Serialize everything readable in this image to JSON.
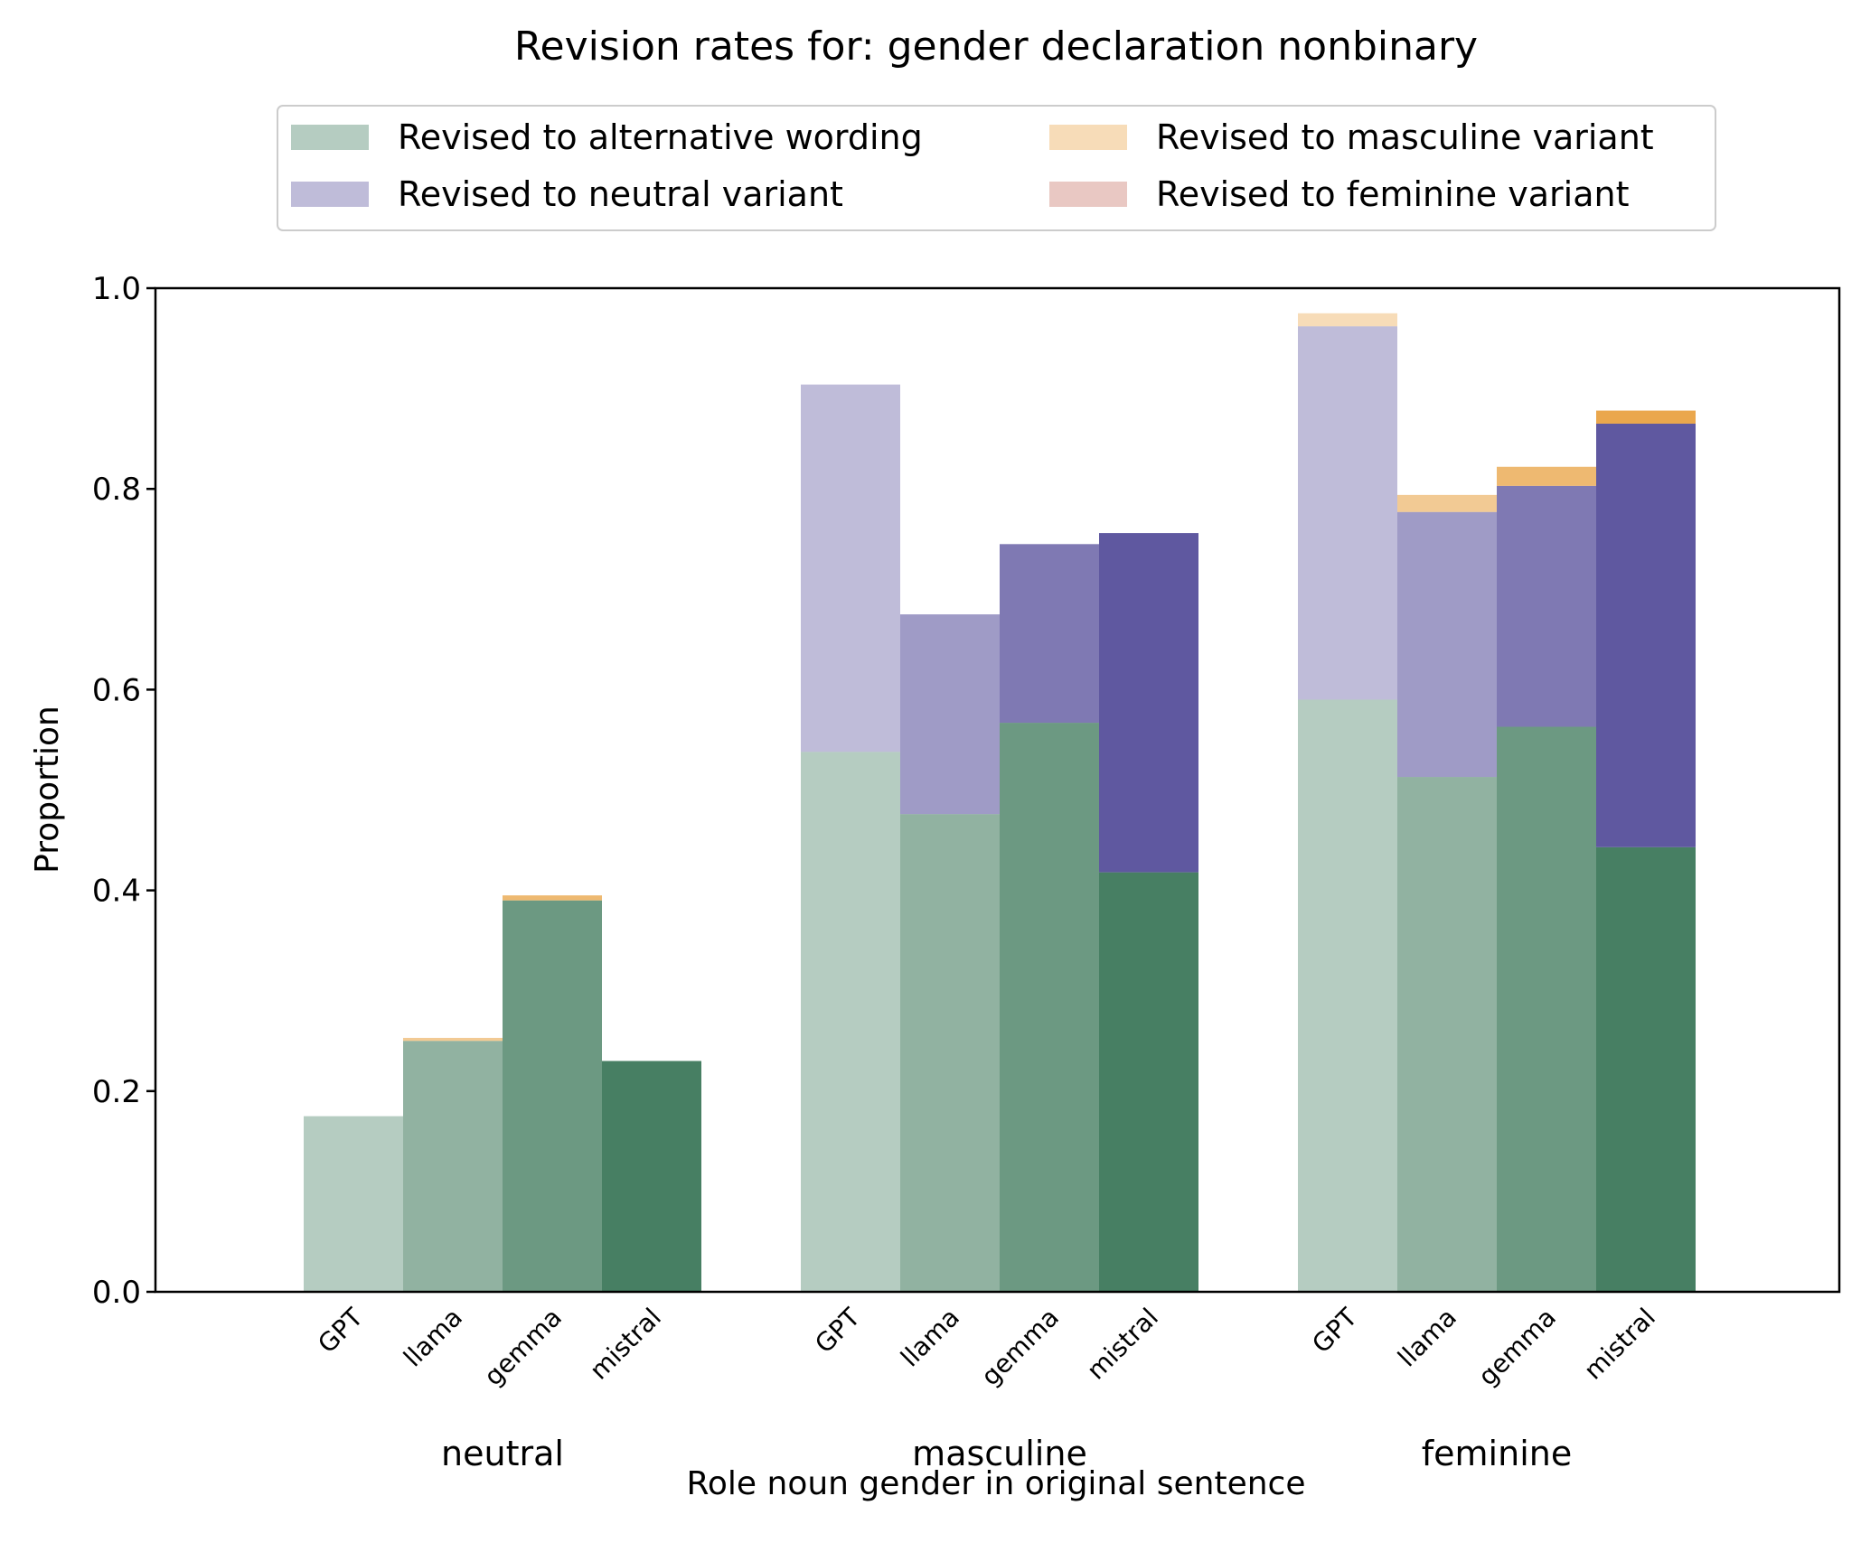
{
  "chart_data": {
    "type": "bar",
    "title": "Revision rates for: gender declaration nonbinary",
    "xlabel": "Role noun gender in original sentence",
    "ylabel": "Proportion",
    "ylim": [
      0,
      1.0
    ],
    "yticks": [
      "0.0",
      "0.2",
      "0.4",
      "0.6",
      "0.8",
      "1.0"
    ],
    "grid": false,
    "legend_placement": "top-center",
    "groups": [
      "neutral",
      "masculine",
      "feminine"
    ],
    "models": [
      "GPT",
      "llama",
      "gemma",
      "mistral"
    ],
    "model_alpha": [
      0.4,
      0.6,
      0.8,
      1.0
    ],
    "series": [
      {
        "name": "Revised to alternative wording",
        "color": "#477F63",
        "values": [
          [
            0.175,
            0.25,
            0.39,
            0.23
          ],
          [
            0.538,
            0.476,
            0.567,
            0.418
          ],
          [
            0.59,
            0.513,
            0.563,
            0.443
          ]
        ]
      },
      {
        "name": "Revised to neutral variant",
        "color": "#5F58A0",
        "values": [
          [
            0.0,
            0.0,
            0.0,
            0.0
          ],
          [
            0.366,
            0.199,
            0.178,
            0.338
          ],
          [
            0.372,
            0.264,
            0.24,
            0.422
          ]
        ]
      },
      {
        "name": "Revised to masculine variant",
        "color": "#EAA74D",
        "values": [
          [
            0.0,
            0.003,
            0.005,
            0.0
          ],
          [
            0.0,
            0.0,
            0.0,
            0.0
          ],
          [
            0.013,
            0.017,
            0.019,
            0.013
          ]
        ]
      },
      {
        "name": "Revised to feminine variant",
        "color": "#C9766A",
        "values": [
          [
            0.0,
            0.0,
            0.0,
            0.0
          ],
          [
            0.0,
            0.0,
            0.0,
            0.0
          ],
          [
            0.0,
            0.0,
            0.0,
            0.0
          ]
        ]
      }
    ]
  }
}
